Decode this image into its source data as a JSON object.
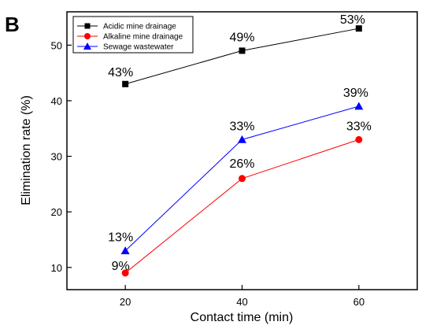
{
  "panel_label": "B",
  "chart_data": {
    "type": "line",
    "title": "",
    "xlabel": "Contact time (min)",
    "ylabel": "Elimination rate (%)",
    "x": [
      20,
      40,
      60
    ],
    "xlim": [
      10,
      70
    ],
    "ylim": [
      6,
      56
    ],
    "xticks": [
      20,
      40,
      60
    ],
    "yticks": [
      10,
      20,
      30,
      40,
      50
    ],
    "grid": false,
    "legend_position": "top-left",
    "series": [
      {
        "name": "Acidic mine drainage",
        "values": [
          43,
          49,
          53
        ],
        "labels": [
          "43%",
          "49%",
          "53%"
        ],
        "color": "#000000",
        "marker": "square"
      },
      {
        "name": "Alkaline mine drainage",
        "values": [
          9,
          26,
          33
        ],
        "labels": [
          "9%",
          "26%",
          "33%"
        ],
        "color": "#ff0000",
        "marker": "circle"
      },
      {
        "name": "Sewage wastewater",
        "values": [
          13,
          33,
          39
        ],
        "labels": [
          "13%",
          "33%",
          "39%"
        ],
        "color": "#0000ff",
        "marker": "triangle"
      }
    ]
  }
}
